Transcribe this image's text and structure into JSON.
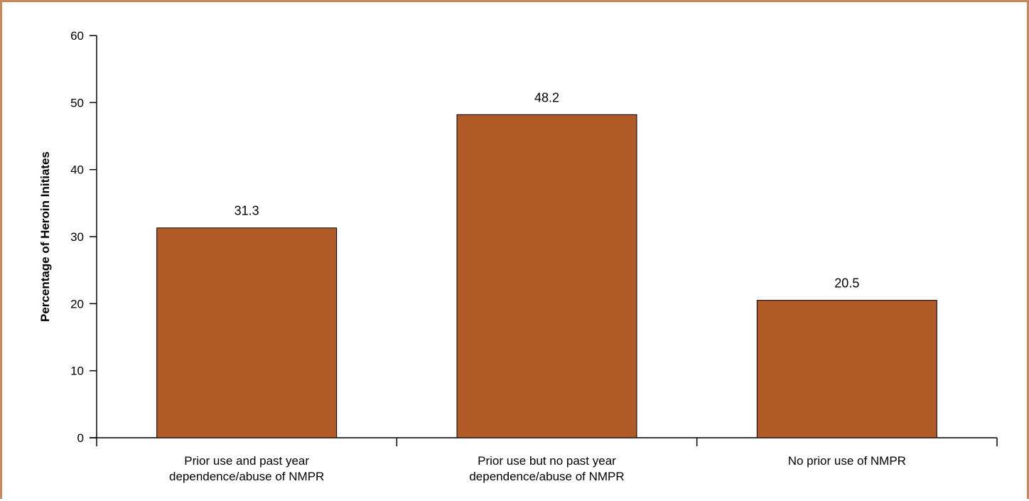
{
  "chart_data": {
    "type": "bar",
    "title": "",
    "xlabel": "",
    "ylabel": "Percentage of Heroin Initiates",
    "categories": [
      [
        "Prior use and past year",
        "dependence/abuse of NMPR"
      ],
      [
        "Prior use but no past year",
        "dependence/abuse of NMPR"
      ],
      [
        "No prior use of NMPR"
      ]
    ],
    "values": [
      31.3,
      48.2,
      20.5
    ],
    "value_labels": [
      "31.3",
      "48.2",
      "20.5"
    ],
    "ylim": [
      0,
      60
    ],
    "yticks": [
      0,
      10,
      20,
      30,
      40,
      50,
      60
    ],
    "ytick_labels": [
      "0",
      "10",
      "20",
      "30",
      "40",
      "50",
      "60"
    ],
    "grid": false,
    "legend": "none",
    "colors": {
      "bar_fill": "#b05a27",
      "bar_stroke": "#000000",
      "frame_border": "#c48a5e",
      "axis": "#000000"
    }
  }
}
